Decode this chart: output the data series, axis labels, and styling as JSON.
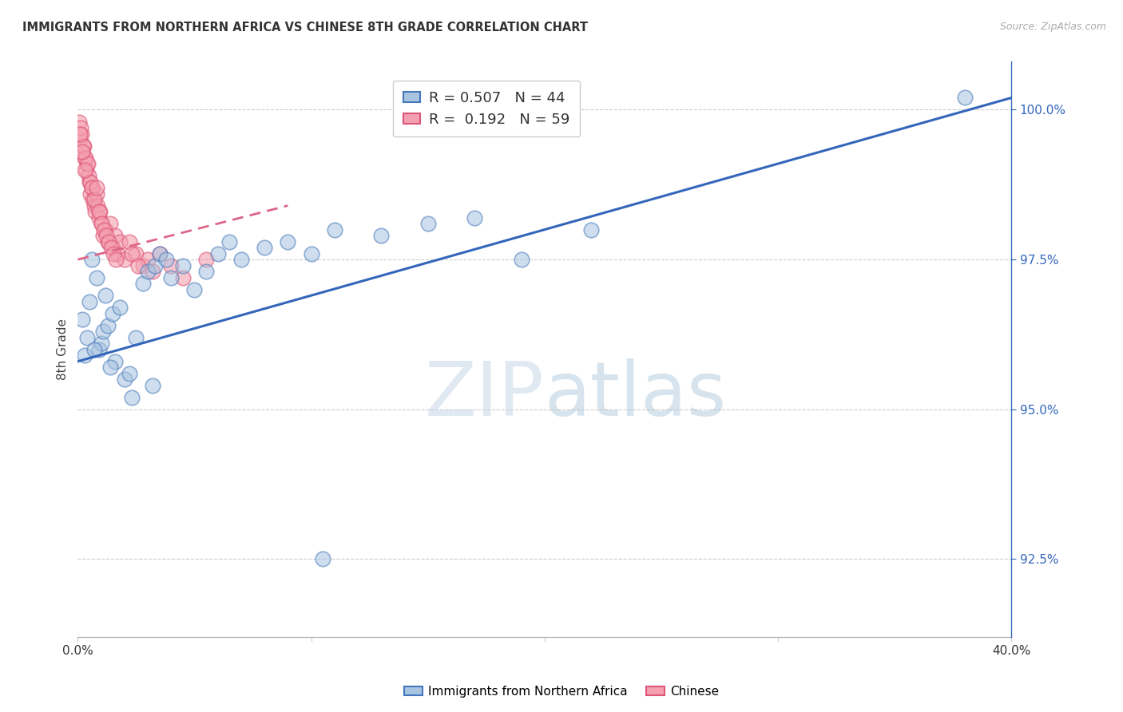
{
  "title": "IMMIGRANTS FROM NORTHERN AFRICA VS CHINESE 8TH GRADE CORRELATION CHART",
  "source": "Source: ZipAtlas.com",
  "ylabel": "8th Grade",
  "ylabel_right_ticks": [
    92.5,
    95.0,
    97.5,
    100.0
  ],
  "ylabel_right_labels": [
    "92.5%",
    "95.0%",
    "97.5%",
    "100.0%"
  ],
  "xmin": 0.0,
  "xmax": 40.0,
  "ymin": 91.2,
  "ymax": 100.8,
  "legend_label1": "Immigrants from Northern Africa",
  "legend_label2": "Chinese",
  "blue_color": "#a8c4e0",
  "pink_color": "#f4a0b0",
  "blue_edge_color": "#4477bb",
  "pink_edge_color": "#dd5577",
  "blue_line_color": "#3366bb",
  "pink_line_color": "#dd6688",
  "blue_scatter_x": [
    0.2,
    0.4,
    0.5,
    0.6,
    0.8,
    0.9,
    1.0,
    1.1,
    1.2,
    1.3,
    1.5,
    1.6,
    1.8,
    2.0,
    2.2,
    2.5,
    2.8,
    3.0,
    3.3,
    3.5,
    3.8,
    4.0,
    4.5,
    5.0,
    5.5,
    6.0,
    6.5,
    7.0,
    8.0,
    9.0,
    10.0,
    11.0,
    13.0,
    15.0,
    17.0,
    19.0,
    22.0,
    38.0,
    0.3,
    0.7,
    1.4,
    2.3,
    3.2,
    10.5
  ],
  "blue_scatter_y": [
    96.5,
    96.2,
    96.8,
    97.5,
    97.2,
    96.0,
    96.1,
    96.3,
    96.9,
    96.4,
    96.6,
    95.8,
    96.7,
    95.5,
    95.6,
    96.2,
    97.1,
    97.3,
    97.4,
    97.6,
    97.5,
    97.2,
    97.4,
    97.0,
    97.3,
    97.6,
    97.8,
    97.5,
    97.7,
    97.8,
    97.6,
    98.0,
    97.9,
    98.1,
    98.2,
    97.5,
    98.0,
    100.2,
    95.9,
    96.0,
    95.7,
    95.2,
    95.4,
    92.5
  ],
  "pink_scatter_x": [
    0.05,
    0.1,
    0.15,
    0.2,
    0.25,
    0.3,
    0.35,
    0.4,
    0.45,
    0.5,
    0.55,
    0.6,
    0.65,
    0.7,
    0.75,
    0.8,
    0.85,
    0.9,
    0.95,
    1.0,
    1.1,
    1.2,
    1.3,
    1.4,
    1.5,
    1.6,
    1.7,
    1.8,
    2.0,
    2.2,
    2.5,
    2.8,
    3.0,
    3.5,
    4.0,
    5.5,
    0.12,
    0.22,
    0.32,
    0.42,
    0.52,
    0.62,
    0.72,
    0.82,
    0.92,
    1.02,
    1.12,
    1.22,
    1.32,
    1.42,
    1.52,
    1.62,
    2.3,
    2.6,
    3.2,
    4.5,
    0.08,
    0.18,
    0.28
  ],
  "pink_scatter_y": [
    99.8,
    99.5,
    99.6,
    99.3,
    99.4,
    99.2,
    99.0,
    99.1,
    98.9,
    98.8,
    98.6,
    98.7,
    98.5,
    98.4,
    98.3,
    98.6,
    98.4,
    98.2,
    98.3,
    98.1,
    97.9,
    98.0,
    97.8,
    98.1,
    97.7,
    97.9,
    97.6,
    97.8,
    97.5,
    97.8,
    97.6,
    97.4,
    97.5,
    97.6,
    97.4,
    97.5,
    99.7,
    99.4,
    99.2,
    99.1,
    98.8,
    98.7,
    98.5,
    98.7,
    98.3,
    98.1,
    98.0,
    97.9,
    97.8,
    97.7,
    97.6,
    97.5,
    97.6,
    97.4,
    97.3,
    97.2,
    99.6,
    99.3,
    99.0
  ],
  "blue_line_x0": 0.0,
  "blue_line_y0": 95.8,
  "blue_line_x1": 40.0,
  "blue_line_y1": 100.2,
  "pink_line_x0": 0.0,
  "pink_line_y0": 97.5,
  "pink_line_x1": 9.0,
  "pink_line_y1": 98.4
}
